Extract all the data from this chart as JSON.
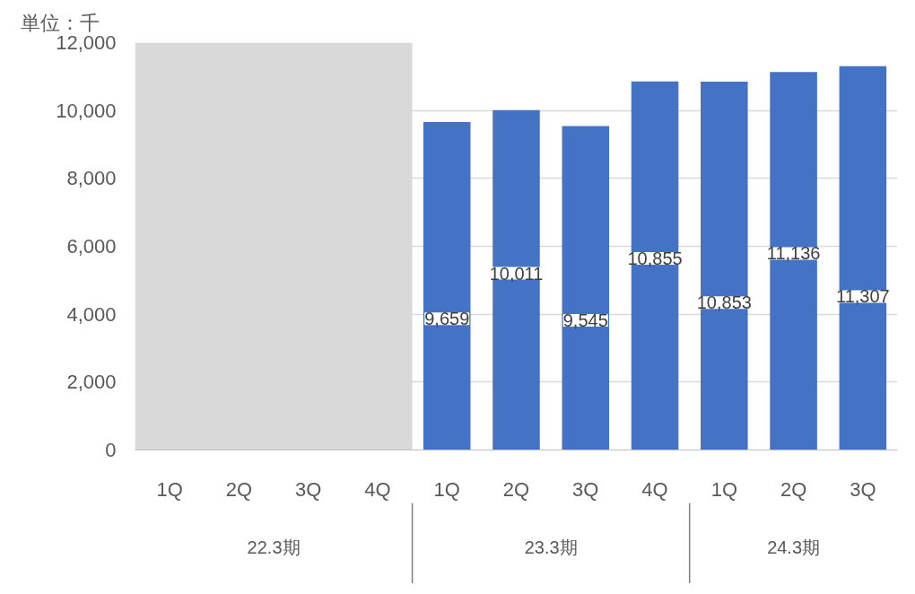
{
  "chart_data": {
    "type": "bar",
    "ylabel": "単位：千",
    "categories": [
      "1Q",
      "2Q",
      "3Q",
      "4Q",
      "1Q",
      "2Q",
      "3Q",
      "4Q",
      "1Q",
      "2Q",
      "3Q"
    ],
    "values": [
      null,
      null,
      null,
      null,
      9659,
      10011,
      9545,
      10855,
      10853,
      11136,
      11307
    ],
    "value_labels": [
      null,
      null,
      null,
      null,
      "9,659",
      "10,011",
      "9,545",
      "10,855",
      "10,853",
      "11,136",
      "11,307"
    ],
    "color": "#4472c4",
    "ylim": [
      0,
      12000
    ],
    "yticks": [
      {
        "value": 0,
        "label": "0"
      },
      {
        "value": 2000,
        "label": "2,000"
      },
      {
        "value": 4000,
        "label": "4,000"
      },
      {
        "value": 6000,
        "label": "6,000"
      },
      {
        "value": 8000,
        "label": "8,000"
      },
      {
        "value": 10000,
        "label": "10,000"
      },
      {
        "value": 12000,
        "label": "12,000"
      }
    ],
    "bands": [
      {
        "axis": "x",
        "from": "1Q",
        "to": "4Q",
        "color": "#d9d9d9"
      }
    ],
    "annotations": [
      "22.3期",
      "23.3期",
      "24.3期"
    ],
    "grid": "y"
  }
}
